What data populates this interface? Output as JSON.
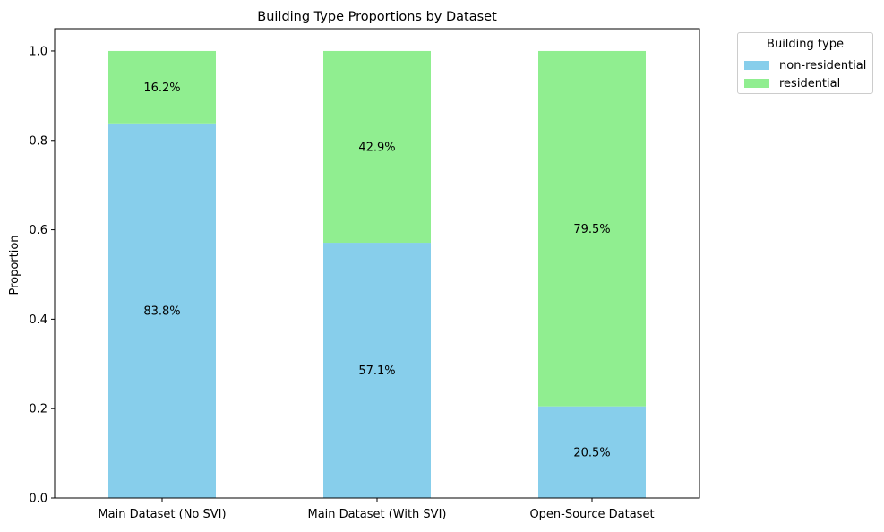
{
  "chart_data": {
    "type": "bar",
    "stacked": true,
    "title": "Building Type Proportions by Dataset",
    "xlabel": "",
    "ylabel": "Proportion",
    "ylim": [
      0,
      1.05
    ],
    "yticks": [
      "0.0",
      "0.2",
      "0.4",
      "0.6",
      "0.8",
      "1.0"
    ],
    "categories": [
      "Main Dataset (No SVI)",
      "Main Dataset (With SVI)",
      "Open-Source Dataset"
    ],
    "series": [
      {
        "name": "non-residential",
        "color": "#87ceeb",
        "values": [
          0.838,
          0.571,
          0.205
        ],
        "labels": [
          "83.8%",
          "57.1%",
          "20.5%"
        ]
      },
      {
        "name": "residential",
        "color": "#90ee90",
        "values": [
          0.162,
          0.429,
          0.795
        ],
        "labels": [
          "16.2%",
          "42.9%",
          "79.5%"
        ]
      }
    ],
    "legend": {
      "title": "Building type",
      "position": "outside-top-right"
    },
    "grid": false
  }
}
